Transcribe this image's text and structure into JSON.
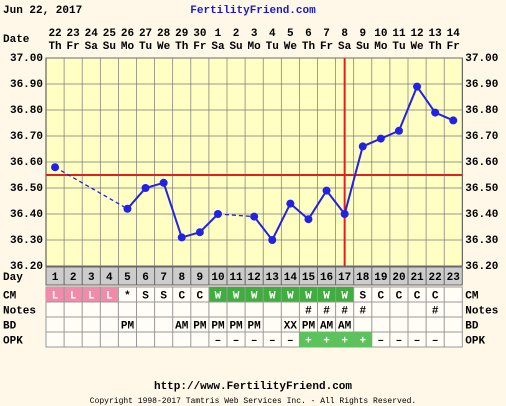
{
  "chart_data": {
    "type": "line",
    "date": "Jun 22, 2017",
    "title": "FertilityFriend.com",
    "date_label": "Date",
    "x_label": "Day",
    "dates": [
      "22",
      "23",
      "24",
      "25",
      "26",
      "27",
      "28",
      "29",
      "30",
      "1",
      "2",
      "3",
      "4",
      "5",
      "6",
      "7",
      "8",
      "9",
      "10",
      "11",
      "12",
      "13",
      "14"
    ],
    "weekdays": [
      "Th",
      "Fr",
      "Sa",
      "Su",
      "Mo",
      "Tu",
      "We",
      "Th",
      "Fr",
      "Sa",
      "Su",
      "Mo",
      "Tu",
      "We",
      "Th",
      "Fr",
      "Sa",
      "Su",
      "Mo",
      "Tu",
      "We",
      "Th",
      "Fr"
    ],
    "categories": [
      "1",
      "2",
      "3",
      "4",
      "5",
      "6",
      "7",
      "8",
      "9",
      "10",
      "11",
      "12",
      "13",
      "14",
      "15",
      "16",
      "17",
      "18",
      "19",
      "20",
      "21",
      "22",
      "23"
    ],
    "values": [
      36.58,
      null,
      null,
      null,
      36.42,
      36.5,
      36.52,
      36.31,
      36.33,
      36.4,
      null,
      36.39,
      36.3,
      36.44,
      36.38,
      36.49,
      36.4,
      36.66,
      36.69,
      36.72,
      36.89,
      36.79,
      36.76
    ],
    "color": "#2222e6",
    "ylim": [
      36.2,
      37.0
    ],
    "yticks": [
      {
        "value": 36.2,
        "label": "36.20"
      },
      {
        "value": 36.3,
        "label": "36.30"
      },
      {
        "value": 36.4,
        "label": "36.40"
      },
      {
        "value": 36.5,
        "label": "36.50"
      },
      {
        "value": 36.6,
        "label": "36.60"
      },
      {
        "value": 36.7,
        "label": "36.70"
      },
      {
        "value": 36.8,
        "label": "36.80"
      },
      {
        "value": 36.9,
        "label": "36.90"
      },
      {
        "value": 37.0,
        "label": "37.00"
      }
    ],
    "grid": true,
    "coverline": 36.55,
    "coverline_color": "#e02020",
    "ovulation_day": "17",
    "rows": [
      {
        "label": "CM",
        "cells": [
          "L",
          "L",
          "L",
          "L",
          "*",
          "S",
          "S",
          "C",
          "C",
          "W",
          "W",
          "W",
          "W",
          "W",
          "W",
          "W",
          "W",
          "S",
          "C",
          "C",
          "C",
          "C",
          null
        ],
        "cell_colors": [
          "#f08caa",
          "#f08caa",
          "#f08caa",
          "#f08caa",
          null,
          null,
          null,
          null,
          null,
          "#3fae3f",
          "#3fae3f",
          "#3fae3f",
          "#3fae3f",
          "#3fae3f",
          "#3fae3f",
          "#3fae3f",
          "#3fae3f",
          null,
          null,
          null,
          null,
          null,
          null
        ]
      },
      {
        "label": "Notes",
        "cells": [
          null,
          null,
          null,
          null,
          null,
          null,
          null,
          null,
          null,
          null,
          null,
          null,
          null,
          null,
          "#",
          "#",
          "#",
          "#",
          null,
          null,
          null,
          "#",
          null
        ]
      },
      {
        "label": "BD",
        "cells": [
          null,
          null,
          null,
          null,
          "PM",
          null,
          null,
          "AM",
          "PM",
          "PM",
          "PM",
          "PM",
          null,
          "XX",
          "PM",
          "AM",
          "AM",
          null,
          null,
          null,
          null,
          null,
          null
        ]
      },
      {
        "label": "OPK",
        "cells": [
          null,
          null,
          null,
          null,
          null,
          null,
          null,
          null,
          null,
          "–",
          "–",
          "–",
          "–",
          "–",
          "+",
          "+",
          "+",
          "+",
          "–",
          "–",
          "–",
          "–",
          null
        ],
        "cell_colors": [
          null,
          null,
          null,
          null,
          null,
          null,
          null,
          null,
          null,
          null,
          null,
          null,
          null,
          null,
          "#5cc25c",
          "#5cc25c",
          "#5cc25c",
          "#5cc25c",
          null,
          null,
          null,
          null,
          null
        ]
      }
    ],
    "footer_url": "http://www.FertilityFriend.com",
    "copyright": "Copyright 1998-2017 Tamtris Web Services Inc. - All Rights Reserved."
  }
}
